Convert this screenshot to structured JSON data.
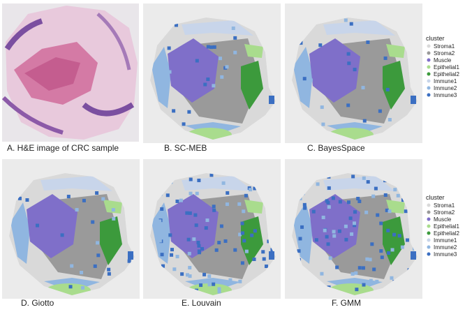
{
  "panels": [
    {
      "caption": "A. H&E image of CRC sample"
    },
    {
      "caption": "B. SC-MEB"
    },
    {
      "caption": "C. BayesSpace"
    },
    {
      "caption": "D. Giotto"
    },
    {
      "caption": "E. Louvain"
    },
    {
      "caption": "F. GMM"
    }
  ],
  "legend": {
    "title": "cluster",
    "items": [
      {
        "name": "Stroma1",
        "color": "#d9d9d9"
      },
      {
        "name": "Stroma2",
        "color": "#9a9a9a"
      },
      {
        "name": "Muscle",
        "color": "#7f6fc9"
      },
      {
        "name": "Epithelial1",
        "color": "#a9dc8d"
      },
      {
        "name": "Epithelial2",
        "color": "#3c9a3c"
      },
      {
        "name": "Immune1",
        "color": "#c8d5ea"
      },
      {
        "name": "Immune2",
        "color": "#90b6e0"
      },
      {
        "name": "Immune3",
        "color": "#3b6fc2"
      }
    ]
  }
}
